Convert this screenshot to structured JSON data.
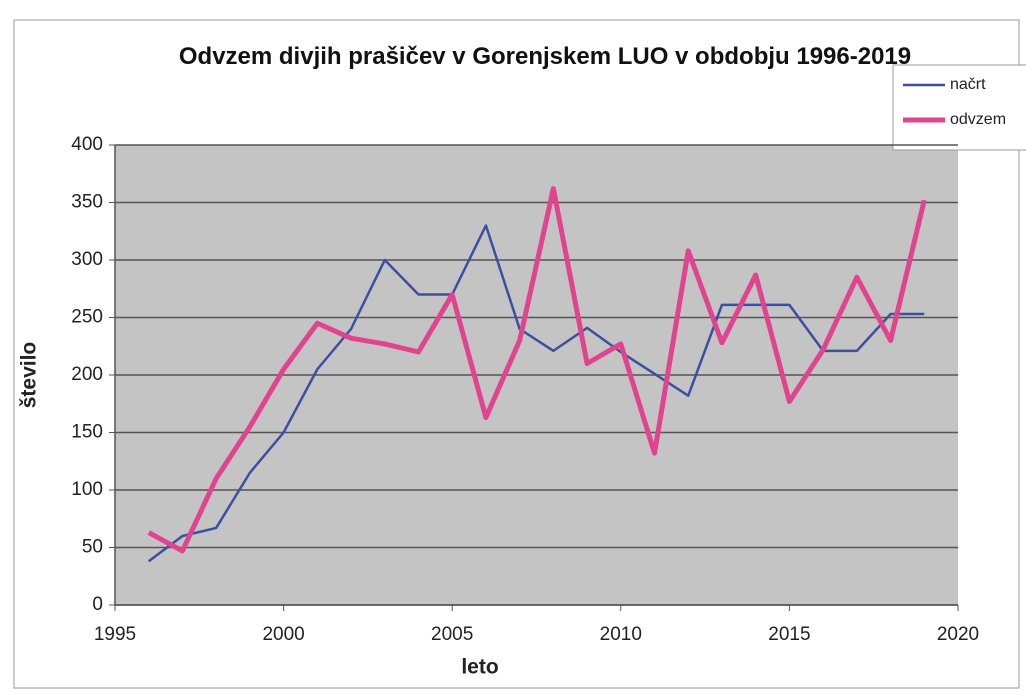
{
  "chart_data": {
    "type": "line",
    "title": "Odvzem divjih prašičev v Gorenjskem LUO v obdobju 1996-2019",
    "x_label": "leto",
    "y_label": "število",
    "x": [
      1996,
      1997,
      1998,
      1999,
      2000,
      2001,
      2002,
      2003,
      2004,
      2005,
      2006,
      2007,
      2008,
      2009,
      2010,
      2011,
      2012,
      2013,
      2014,
      2015,
      2016,
      2017,
      2018,
      2019
    ],
    "series": [
      {
        "name": "načrt",
        "color": "#3b4fa3",
        "width": 2.5,
        "values": [
          38,
          60,
          67,
          115,
          150,
          205,
          240,
          300,
          270,
          270,
          330,
          240,
          221,
          241,
          220,
          201,
          182,
          261,
          261,
          261,
          221,
          221,
          253,
          253
        ]
      },
      {
        "name": "odvzem",
        "color": "#e0448f",
        "width": 5,
        "values": [
          63,
          47,
          110,
          155,
          205,
          245,
          232,
          227,
          220,
          270,
          163,
          230,
          362,
          210,
          227,
          132,
          308,
          228,
          287,
          177,
          222,
          285,
          230,
          352
        ]
      }
    ],
    "xlim": [
      1995,
      2020
    ],
    "xticks": [
      1995,
      2000,
      2005,
      2010,
      2015,
      2020
    ],
    "ylim": [
      0,
      400
    ],
    "yticks": [
      0,
      50,
      100,
      150,
      200,
      250,
      300,
      350,
      400
    ],
    "grid": true,
    "legend": "top-right"
  }
}
